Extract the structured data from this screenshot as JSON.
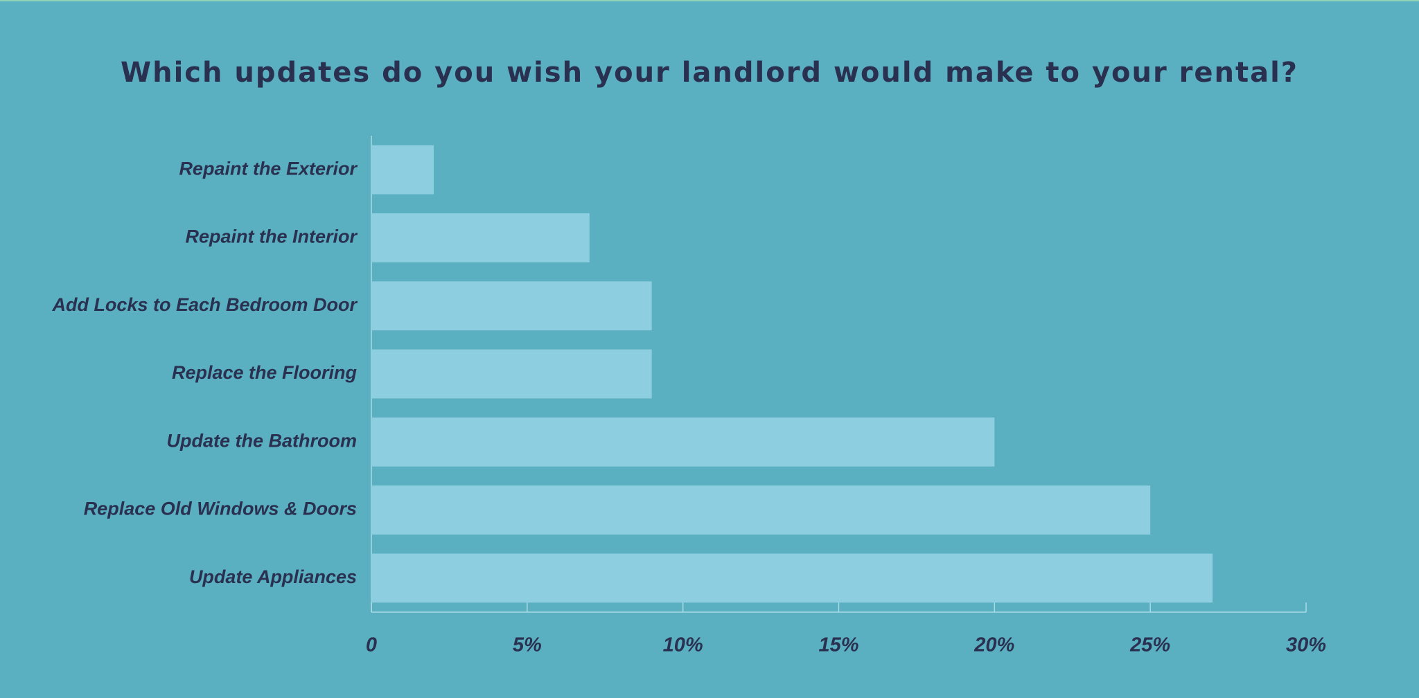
{
  "chart_data": {
    "type": "barh",
    "title": "Which updates do you wish your landlord would make to your rental?",
    "categories": [
      "Repaint the Exterior",
      "Repaint the Interior",
      "Add Locks to Each Bedroom Door",
      "Replace the Flooring",
      "Update the Bathroom",
      "Replace Old Windows & Doors",
      "Update Appliances"
    ],
    "values": [
      2,
      7,
      9,
      9,
      20,
      25,
      27
    ],
    "color": "#8dcfe0",
    "xlim": [
      0,
      30
    ],
    "xticks": [
      0,
      {
        "value": 5,
        "label": "5%"
      },
      {
        "value": 10,
        "label": "10%"
      },
      {
        "value": 15,
        "label": "15%"
      },
      {
        "value": 20,
        "label": "20%"
      },
      {
        "value": 25,
        "label": "25%"
      },
      {
        "value": 30,
        "label": "30%"
      }
    ],
    "grid": false
  }
}
